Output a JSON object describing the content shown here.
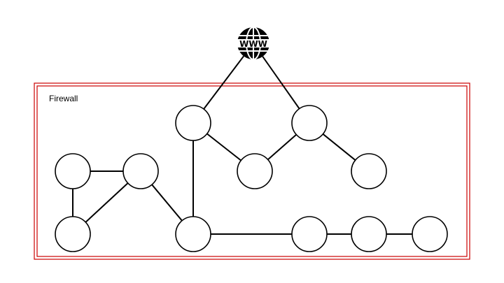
{
  "diagram": {
    "firewall": {
      "label": "Firewall",
      "border_color": "#cc0000"
    },
    "internet": {
      "icon": "globe-www-icon",
      "label": "WWW"
    },
    "nodes": [
      "web-uplink-left",
      "web-uplink-right",
      "branch-mid",
      "branch-right",
      "cluster-top-left",
      "cluster-top-right",
      "cluster-bottom-left",
      "hub-bottom",
      "chain-1",
      "chain-2",
      "chain-3"
    ],
    "edges": [
      [
        "internet",
        "web-uplink-left"
      ],
      [
        "internet",
        "web-uplink-right"
      ],
      [
        "web-uplink-left",
        "branch-mid"
      ],
      [
        "web-uplink-right",
        "branch-mid"
      ],
      [
        "web-uplink-right",
        "branch-right"
      ],
      [
        "web-uplink-left",
        "hub-bottom"
      ],
      [
        "cluster-top-left",
        "cluster-top-right"
      ],
      [
        "cluster-top-left",
        "cluster-bottom-left"
      ],
      [
        "cluster-top-right",
        "cluster-bottom-left"
      ],
      [
        "cluster-top-right",
        "hub-bottom"
      ],
      [
        "hub-bottom",
        "chain-1"
      ],
      [
        "chain-1",
        "chain-2"
      ],
      [
        "chain-2",
        "chain-3"
      ]
    ],
    "colors": {
      "node_stroke": "#000000",
      "edge": "#000000"
    }
  }
}
